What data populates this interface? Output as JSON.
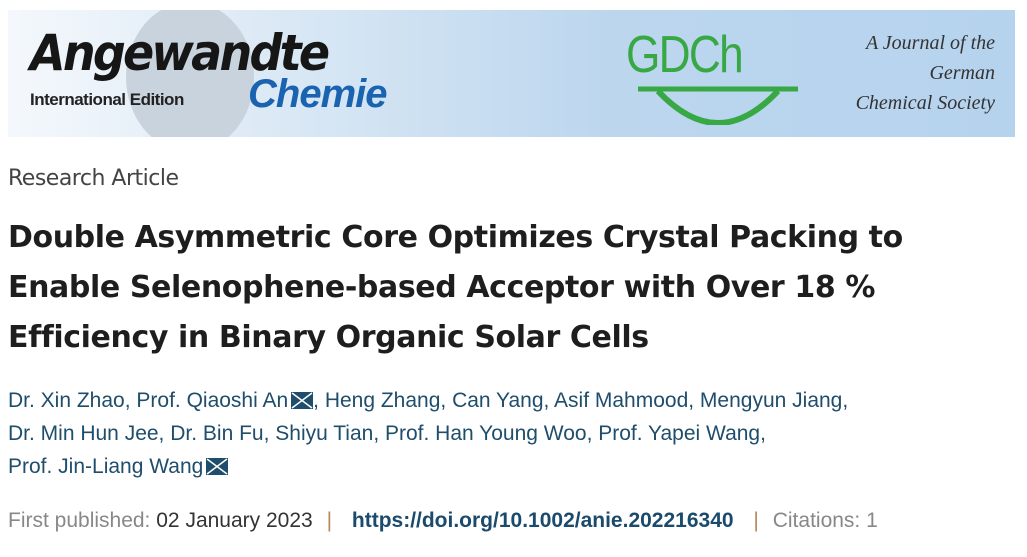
{
  "banner": {
    "journal_line1": "Angewandte",
    "journal_edition": "International Edition",
    "journal_line2": "Chemie",
    "society_logo": "GDCh",
    "society_text": [
      "A Journal of the",
      "German",
      "Chemical Society"
    ]
  },
  "article": {
    "type": "Research Article",
    "title_lines": [
      "Double Asymmetric Core Optimizes Crystal Packing to",
      "Enable Selenophene-based Acceptor with Over 18 %",
      "Efficiency in Binary Organic Solar Cells"
    ],
    "authors_lines": [
      "Dr. Xin Zhao, Prof. Qiaoshi An",
      "Heng Zhang, Can Yang, Asif Mahmood, Mengyun Jiang,",
      "Dr. Min Hun Jee, Dr. Bin Fu, Shiyu Tian, Prof. Han Young Woo, Prof. Yapei Wang,",
      "Prof. Jin-Liang Wang"
    ],
    "first_published_label": "First published:",
    "first_published_date": "02 January 2023",
    "doi": "https://doi.org/10.1002/anie.202216340",
    "citations": "Citations: 1",
    "separator": "|"
  },
  "colors": {
    "link": "#1f4d6c",
    "banner_blue": "#b6d3ee",
    "gdch_green": "#38a845",
    "chemie_blue": "#1a63b0"
  }
}
